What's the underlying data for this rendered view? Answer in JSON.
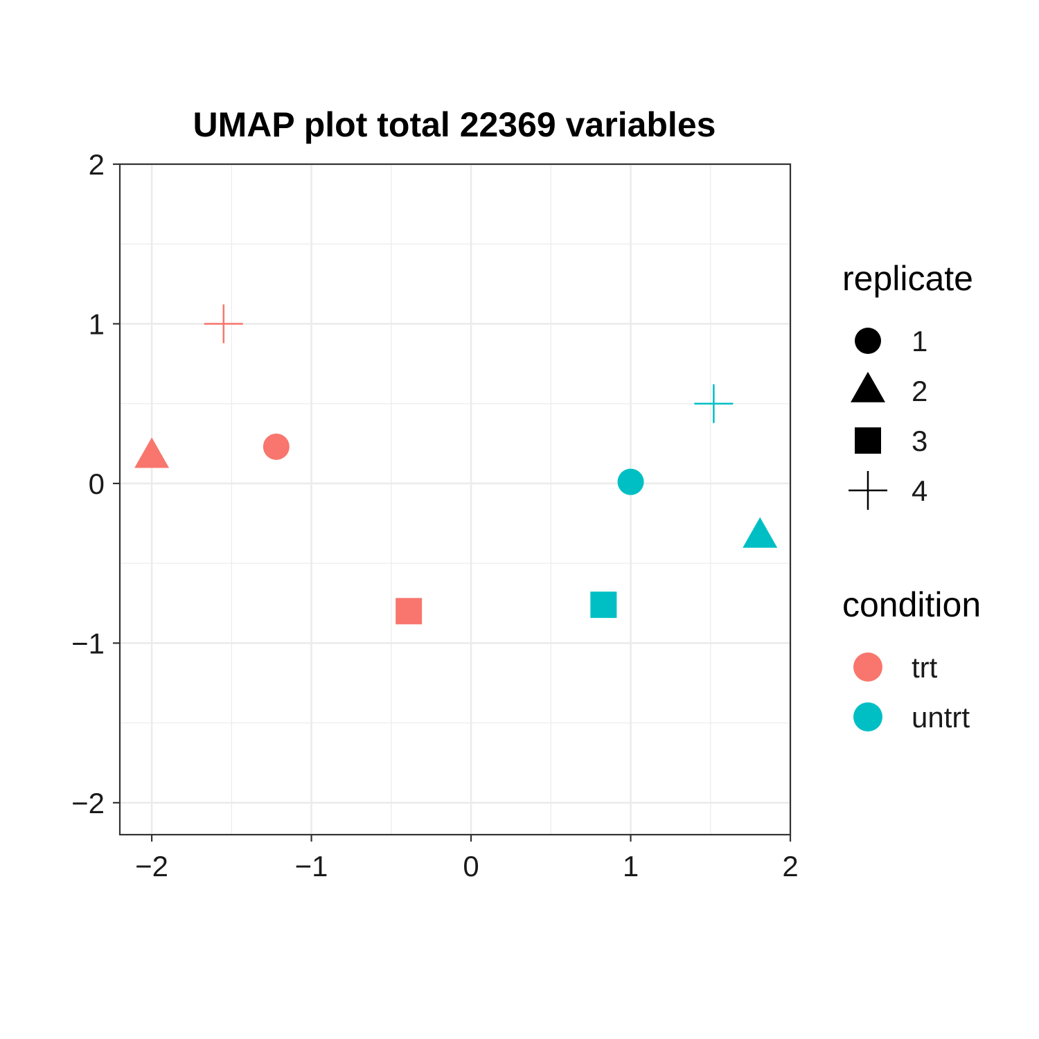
{
  "chart_data": {
    "type": "scatter",
    "title": "UMAP plot total 22369 variables",
    "xlabel": "",
    "ylabel": "",
    "xlim": [
      -2.2,
      2.0
    ],
    "ylim": [
      -2.2,
      2.0
    ],
    "x_ticks": [
      -2,
      -1,
      0,
      1,
      2
    ],
    "y_ticks": [
      -2,
      -1,
      0,
      1,
      2
    ],
    "x_tick_labels": [
      "−2",
      "−1",
      "0",
      "1",
      "2"
    ],
    "y_tick_labels": [
      "−2",
      "−1",
      "0",
      "1",
      "2"
    ],
    "grid": true,
    "legend_placement": "right",
    "shape_legend": {
      "title": "replicate",
      "entries": [
        {
          "label": "1",
          "shape": "circle"
        },
        {
          "label": "2",
          "shape": "triangle"
        },
        {
          "label": "3",
          "shape": "square"
        },
        {
          "label": "4",
          "shape": "plus"
        }
      ]
    },
    "color_legend": {
      "title": "condition",
      "entries": [
        {
          "label": "trt",
          "color": "#F8766D"
        },
        {
          "label": "untrt",
          "color": "#00BFC4"
        }
      ]
    },
    "points": [
      {
        "x": -1.55,
        "y": 1.0,
        "condition": "trt",
        "replicate": "4"
      },
      {
        "x": -2.0,
        "y": 0.17,
        "condition": "trt",
        "replicate": "2"
      },
      {
        "x": -1.22,
        "y": 0.23,
        "condition": "trt",
        "replicate": "1"
      },
      {
        "x": -0.39,
        "y": -0.8,
        "condition": "trt",
        "replicate": "3"
      },
      {
        "x": 1.52,
        "y": 0.5,
        "condition": "untrt",
        "replicate": "4"
      },
      {
        "x": 1.0,
        "y": 0.01,
        "condition": "untrt",
        "replicate": "1"
      },
      {
        "x": 1.81,
        "y": -0.33,
        "condition": "untrt",
        "replicate": "2"
      },
      {
        "x": 0.83,
        "y": -0.76,
        "condition": "untrt",
        "replicate": "3"
      }
    ]
  }
}
